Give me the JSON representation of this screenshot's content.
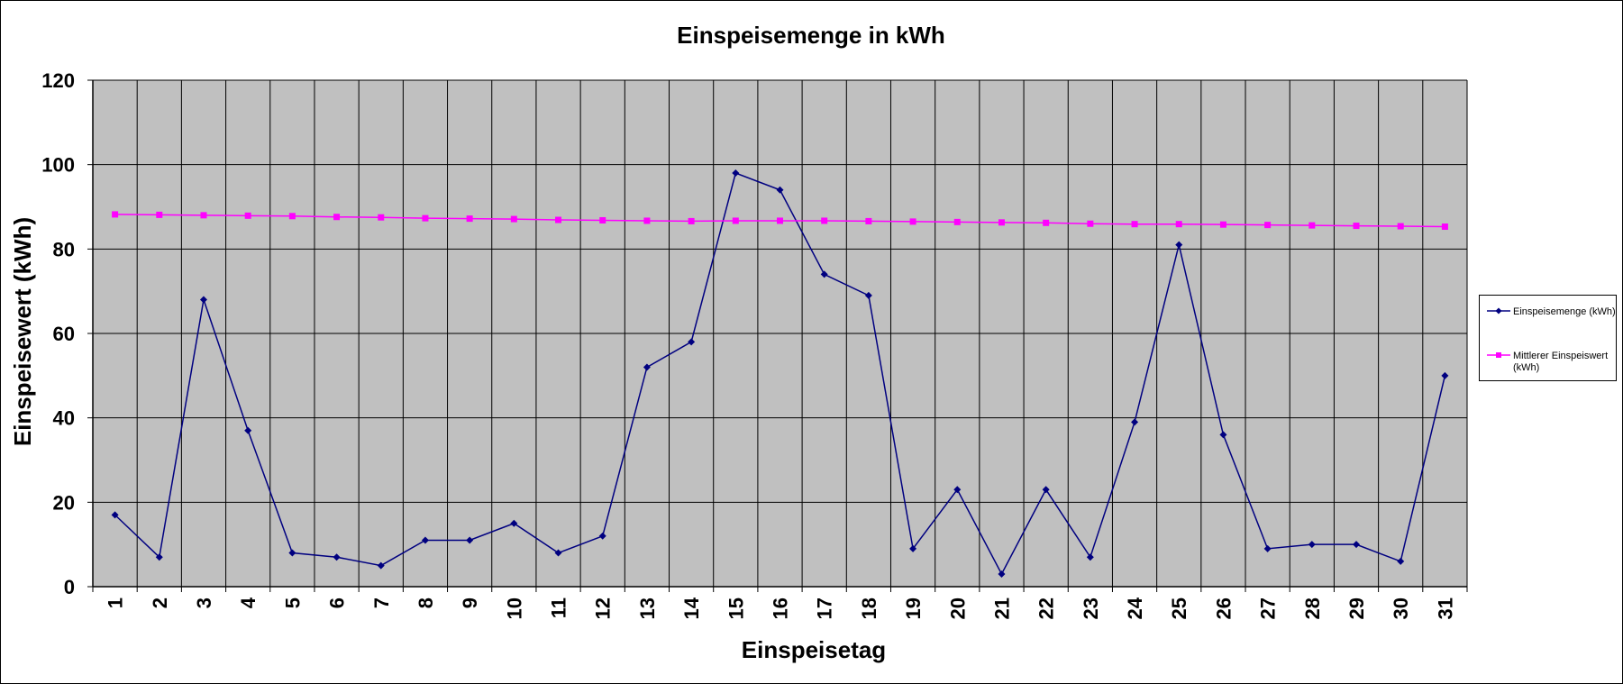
{
  "colors": {
    "plot_background": "#c0c0c0",
    "grid": "#000000",
    "series_1": "#000080",
    "series_2": "#ff00ff"
  },
  "chart_data": {
    "type": "line",
    "title": "Einspeisemenge in kWh",
    "xlabel": "Einspeisetag",
    "ylabel": "Einspeisewert  (kWh)",
    "ylim": [
      0,
      120
    ],
    "yticks": [
      "0",
      "20",
      "40",
      "60",
      "80",
      "100",
      "120"
    ],
    "grid": true,
    "legend_position": "right",
    "categories": [
      "1",
      "2",
      "3",
      "4",
      "5",
      "6",
      "7",
      "8",
      "9",
      "10",
      "11",
      "12",
      "13",
      "14",
      "15",
      "16",
      "17",
      "18",
      "19",
      "20",
      "21",
      "22",
      "23",
      "24",
      "25",
      "26",
      "27",
      "28",
      "29",
      "30",
      "31"
    ],
    "series": [
      {
        "name": "Einspeisemenge (kWh)",
        "marker": "diamond",
        "values": [
          17,
          7,
          68,
          37,
          8,
          7,
          5,
          11,
          11,
          15,
          8,
          12,
          52,
          58,
          98,
          94,
          74,
          69,
          9,
          23,
          3,
          23,
          7,
          39,
          81,
          36,
          9,
          10,
          10,
          6,
          50
        ]
      },
      {
        "name": "Mittlerer Einspeiswert (kWh)",
        "marker": "square",
        "values": [
          88.2,
          88.1,
          88.0,
          87.9,
          87.8,
          87.6,
          87.5,
          87.3,
          87.2,
          87.1,
          86.9,
          86.8,
          86.7,
          86.6,
          86.7,
          86.7,
          86.7,
          86.6,
          86.5,
          86.4,
          86.3,
          86.2,
          86.0,
          85.9,
          85.9,
          85.8,
          85.7,
          85.6,
          85.5,
          85.4,
          85.3
        ]
      }
    ]
  },
  "legend": {
    "items": [
      {
        "lines": [
          "Einspeisemenge (kWh)"
        ]
      },
      {
        "lines": [
          "Mittlerer Einspeiswert",
          "(kWh)"
        ]
      }
    ]
  }
}
